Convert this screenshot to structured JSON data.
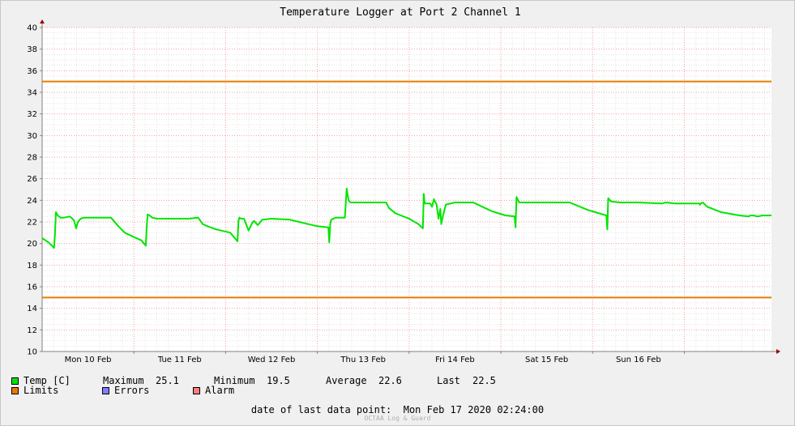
{
  "chart_data": {
    "type": "line",
    "title": "Temperature Logger at Port 2 Channel 1",
    "ylim": [
      10,
      40
    ],
    "yticks": [
      10,
      12,
      14,
      16,
      18,
      20,
      22,
      24,
      26,
      28,
      30,
      32,
      34,
      36,
      38,
      40
    ],
    "xlim": [
      9.0,
      16.95
    ],
    "xlabels": [
      {
        "x": 9.5,
        "label": "Mon 10 Feb"
      },
      {
        "x": 10.5,
        "label": "Tue 11 Feb"
      },
      {
        "x": 11.5,
        "label": "Wed 12 Feb"
      },
      {
        "x": 12.5,
        "label": "Thu 13 Feb"
      },
      {
        "x": 13.5,
        "label": "Fri 14 Feb"
      },
      {
        "x": 14.5,
        "label": "Sat 15 Feb"
      },
      {
        "x": 15.5,
        "label": "Sun 16 Feb"
      }
    ],
    "xdays": [
      10,
      11,
      12,
      13,
      14,
      15,
      16
    ],
    "grid": true,
    "series": [
      {
        "name": "Temp [C]",
        "color": "#00e600",
        "x": [
          9.0,
          9.07,
          9.13,
          9.14,
          9.15,
          9.17,
          9.2,
          9.24,
          9.3,
          9.33,
          9.35,
          9.37,
          9.39,
          9.42,
          9.46,
          9.55,
          9.75,
          9.83,
          9.9,
          10.0,
          10.08,
          10.13,
          10.14,
          10.15,
          10.17,
          10.2,
          10.25,
          10.4,
          10.6,
          10.7,
          10.75,
          10.8,
          10.9,
          11.05,
          11.13,
          11.14,
          11.15,
          11.17,
          11.2,
          11.25,
          11.29,
          11.31,
          11.35,
          11.4,
          11.5,
          11.7,
          11.8,
          11.9,
          12.0,
          12.12,
          12.13,
          12.14,
          12.15,
          12.2,
          12.3,
          12.32,
          12.33,
          12.34,
          12.36,
          12.4,
          12.5,
          12.75,
          12.78,
          12.85,
          13.0,
          13.1,
          13.15,
          13.16,
          13.17,
          13.19,
          13.23,
          13.25,
          13.27,
          13.3,
          13.32,
          13.34,
          13.35,
          13.37,
          13.4,
          13.5,
          13.7,
          13.75,
          13.9,
          14.05,
          14.15,
          14.16,
          14.17,
          14.2,
          14.3,
          14.5,
          14.6,
          14.75,
          14.95,
          15.15,
          15.16,
          15.17,
          15.2,
          15.3,
          15.5,
          15.75,
          15.8,
          15.9,
          16.05,
          16.16,
          16.17,
          16.18,
          16.2,
          16.25,
          16.4,
          16.6,
          16.7,
          16.72,
          16.75,
          16.8,
          16.85,
          16.9,
          16.95
        ],
        "values": [
          20.5,
          20.1,
          19.6,
          20.8,
          22.9,
          22.6,
          22.4,
          22.4,
          22.5,
          22.3,
          22.1,
          21.4,
          22.0,
          22.3,
          22.4,
          22.4,
          22.4,
          21.6,
          21.0,
          20.6,
          20.3,
          19.8,
          21.6,
          22.7,
          22.6,
          22.4,
          22.3,
          22.3,
          22.3,
          22.4,
          21.8,
          21.6,
          21.3,
          21.0,
          20.2,
          22.1,
          22.4,
          22.3,
          22.3,
          21.2,
          21.9,
          22.1,
          21.7,
          22.2,
          22.3,
          22.2,
          22.0,
          21.8,
          21.6,
          21.5,
          20.1,
          21.8,
          22.2,
          22.4,
          22.4,
          25.1,
          24.5,
          24.0,
          23.8,
          23.8,
          23.8,
          23.8,
          23.3,
          22.8,
          22.3,
          21.8,
          21.4,
          24.6,
          23.7,
          23.7,
          23.7,
          23.4,
          24.1,
          23.6,
          22.3,
          23.2,
          21.8,
          22.6,
          23.6,
          23.8,
          23.8,
          23.6,
          23.0,
          22.6,
          22.5,
          21.5,
          24.3,
          23.8,
          23.8,
          23.8,
          23.8,
          23.8,
          23.1,
          22.6,
          21.3,
          24.2,
          23.9,
          23.8,
          23.8,
          23.7,
          23.8,
          23.7,
          23.7,
          23.7,
          23.6,
          23.7,
          23.8,
          23.4,
          22.9,
          22.6,
          22.5,
          22.6,
          22.6,
          22.5,
          22.6,
          22.6,
          22.6
        ]
      }
    ],
    "limits": {
      "name": "Limits",
      "color": "#e87a00",
      "upper": 35,
      "lower": 15
    }
  },
  "legend": {
    "temp_label": "Temp [C]",
    "maximum_label": "Maximum",
    "maximum_value": "25.1",
    "minimum_label": "Minimum",
    "minimum_value": "19.5",
    "average_label": "Average",
    "average_value": "22.6",
    "last_label": "Last",
    "last_value": "22.5",
    "limits_label": "Limits",
    "errors_label": "Errors",
    "alarm_label": "Alarm",
    "colors": {
      "temp": "#00e600",
      "limits": "#e87a00",
      "errors": "#7f7fff",
      "alarm": "#ff7f7f"
    }
  },
  "footer": {
    "date_label": "date of last data point:",
    "date_value": "Mon Feb 17 2020 02:24:00",
    "watermark": "OCTAA Log & Guard"
  }
}
